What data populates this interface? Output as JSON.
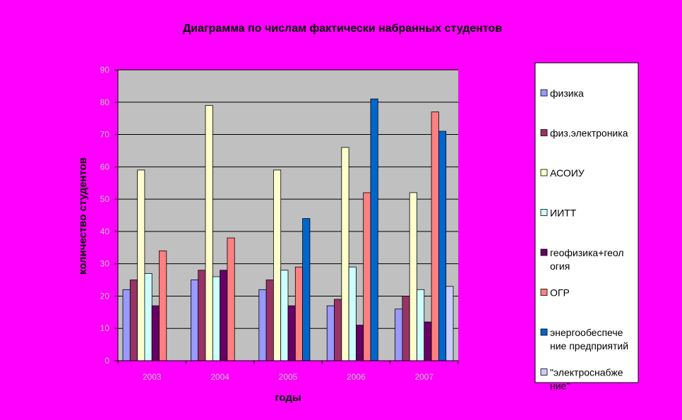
{
  "chart_data": {
    "type": "bar",
    "title": "Диаграмма по числам фактически набранных студентов",
    "xlabel": "годы",
    "ylabel": "количество студентов",
    "categories": [
      "2003",
      "2004",
      "2005",
      "2006",
      "2007"
    ],
    "ylim": [
      0,
      90
    ],
    "yticks": [
      "0",
      "10",
      "20",
      "30",
      "40",
      "50",
      "60",
      "70",
      "80",
      "90"
    ],
    "grid": true,
    "legend_position": "right",
    "plot_background": "#C0C0C0",
    "series": [
      {
        "name": "физика",
        "color": "#9999FF",
        "values": [
          22,
          25,
          22,
          17,
          16
        ]
      },
      {
        "name": "физ.электроника",
        "color": "#993366",
        "values": [
          25,
          28,
          25,
          19,
          20
        ]
      },
      {
        "name": "АСОИУ",
        "color": "#FFFFCC",
        "values": [
          59,
          79,
          59,
          66,
          52
        ]
      },
      {
        "name": "ИИТТ",
        "color": "#CCFFFF",
        "values": [
          27,
          26,
          28,
          29,
          22
        ]
      },
      {
        "name": "геофизика+геология",
        "legend_lines": [
          "геофизика+геол",
          "огия"
        ],
        "color": "#660066",
        "values": [
          17,
          28,
          17,
          11,
          12
        ]
      },
      {
        "name": "ОГР",
        "color": "#FF8080",
        "values": [
          34,
          38,
          29,
          52,
          77
        ]
      },
      {
        "name": "энергообеспечение предприятий",
        "legend_lines": [
          "энергообеспече",
          "ние предприятий"
        ],
        "color": "#0066CC",
        "values": [
          null,
          null,
          44,
          81,
          71
        ]
      },
      {
        "name": "\"электроснабжение\"",
        "legend_lines": [
          "\"электроснабже",
          "ние\""
        ],
        "color": "#CCCCFF",
        "values": [
          null,
          null,
          null,
          null,
          23
        ]
      }
    ]
  }
}
